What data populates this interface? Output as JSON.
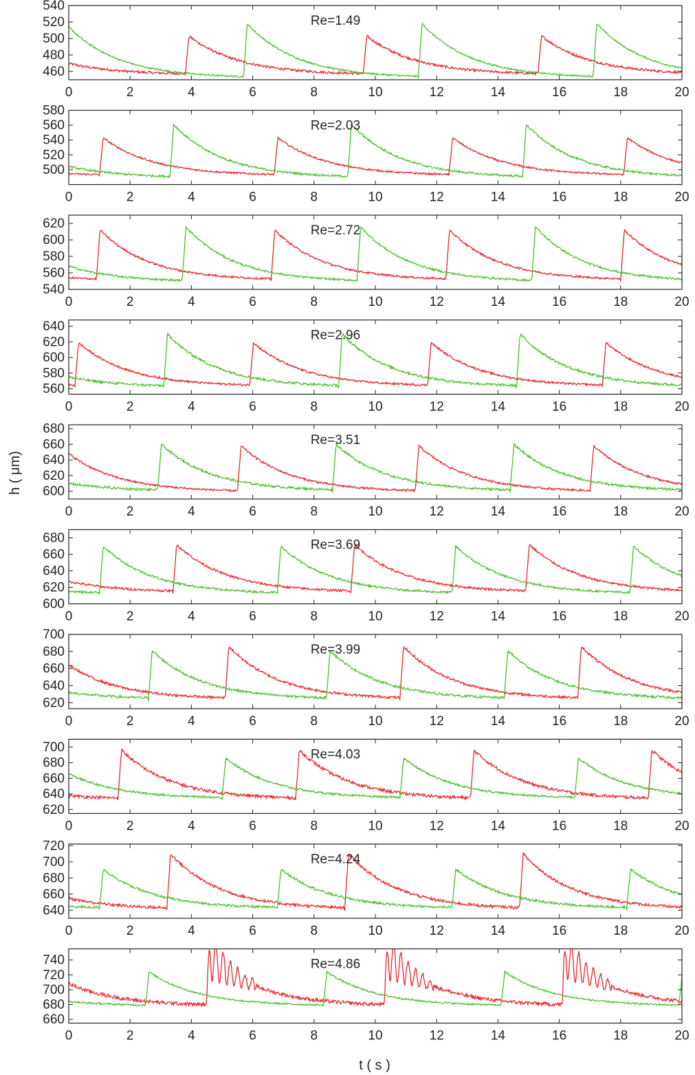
{
  "figure": {
    "xlabel": "t ( s )",
    "ylabel": "h ( μm)"
  },
  "colors": {
    "red": "#e8252a",
    "green": "#4cbf2c",
    "frame": "#222222"
  },
  "chart_data": [
    {
      "type": "line",
      "annotation": "Re=1.49",
      "xlim": [
        0,
        20
      ],
      "ylim": [
        450,
        540
      ],
      "xticks": [
        0,
        2,
        4,
        6,
        8,
        10,
        12,
        14,
        16,
        18,
        20
      ],
      "yticks": [
        460,
        480,
        500,
        520,
        540
      ],
      "period": 5.8,
      "series": [
        {
          "color": "red",
          "jump_times": [
            3.8,
            9.6,
            15.3
          ],
          "base": 456,
          "peak": 503,
          "noise": 1.5
        },
        {
          "color": "green",
          "jump_times": [
            5.7,
            11.4,
            17.1
          ],
          "base": 452,
          "peak": 518,
          "noise": 1.0
        }
      ]
    },
    {
      "type": "line",
      "annotation": "Re=2.03",
      "xlim": [
        0,
        20
      ],
      "ylim": [
        480,
        580
      ],
      "xticks": [
        0,
        2,
        4,
        6,
        8,
        10,
        12,
        14,
        16,
        18,
        20
      ],
      "yticks": [
        500,
        520,
        540,
        560,
        580
      ],
      "period": 5.8,
      "series": [
        {
          "color": "red",
          "jump_times": [
            1.0,
            6.7,
            12.4,
            18.1
          ],
          "base": 492,
          "peak": 543,
          "noise": 1.2
        },
        {
          "color": "green",
          "jump_times": [
            3.3,
            9.1,
            14.8
          ],
          "base": 489,
          "peak": 561,
          "noise": 1.4
        }
      ]
    },
    {
      "type": "line",
      "annotation": "Re=2.72",
      "xlim": [
        0,
        20
      ],
      "ylim": [
        540,
        630
      ],
      "xticks": [
        0,
        2,
        4,
        6,
        8,
        10,
        12,
        14,
        16,
        18,
        20
      ],
      "yticks": [
        540,
        560,
        580,
        600,
        620
      ],
      "period": 5.7,
      "series": [
        {
          "color": "red",
          "jump_times": [
            0.9,
            6.6,
            12.3,
            18.0
          ],
          "base": 551,
          "peak": 612,
          "noise": 1.2
        },
        {
          "color": "green",
          "jump_times": [
            3.7,
            9.4,
            15.1
          ],
          "base": 549,
          "peak": 616,
          "noise": 1.2
        }
      ]
    },
    {
      "type": "line",
      "annotation": "Re=2.96",
      "xlim": [
        0,
        20
      ],
      "ylim": [
        553,
        648
      ],
      "xticks": [
        0,
        2,
        4,
        6,
        8,
        10,
        12,
        14,
        16,
        18,
        20
      ],
      "yticks": [
        560,
        580,
        600,
        620,
        640
      ],
      "period": 5.8,
      "series": [
        {
          "color": "red",
          "jump_times": [
            0.2,
            5.9,
            11.7,
            17.4
          ],
          "base": 563,
          "peak": 619,
          "noise": 1.3
        },
        {
          "color": "green",
          "jump_times": [
            3.1,
            8.8,
            14.6
          ],
          "base": 562,
          "peak": 630,
          "noise": 1.6
        }
      ]
    },
    {
      "type": "line",
      "annotation": "Re=3.51",
      "xlim": [
        0,
        20
      ],
      "ylim": [
        590,
        685
      ],
      "xticks": [
        0,
        2,
        4,
        6,
        8,
        10,
        12,
        14,
        16,
        18,
        20
      ],
      "yticks": [
        600,
        620,
        640,
        660,
        680
      ],
      "period": 5.8,
      "series": [
        {
          "color": "red",
          "jump_times": [
            5.5,
            11.3,
            17.0
          ],
          "base": 599,
          "peak": 658,
          "noise": 1.3
        },
        {
          "color": "green",
          "jump_times": [
            2.9,
            8.6,
            14.4
          ],
          "base": 600,
          "peak": 660,
          "noise": 1.5
        }
      ]
    },
    {
      "type": "line",
      "annotation": "Re=3.69",
      "xlim": [
        0,
        20
      ],
      "ylim": [
        600,
        690
      ],
      "xticks": [
        0,
        2,
        4,
        6,
        8,
        10,
        12,
        14,
        16,
        18,
        20
      ],
      "yticks": [
        600,
        620,
        640,
        660,
        680
      ],
      "period": 5.8,
      "series": [
        {
          "color": "red",
          "jump_times": [
            3.4,
            9.2,
            14.9
          ],
          "base": 614,
          "peak": 672,
          "noise": 1.4
        },
        {
          "color": "green",
          "jump_times": [
            1.0,
            6.8,
            12.5,
            18.3
          ],
          "base": 612,
          "peak": 670,
          "noise": 1.3
        }
      ]
    },
    {
      "type": "line",
      "annotation": "Re=3.99",
      "xlim": [
        0,
        20
      ],
      "ylim": [
        613,
        700
      ],
      "xticks": [
        0,
        2,
        4,
        6,
        8,
        10,
        12,
        14,
        16,
        18,
        20
      ],
      "yticks": [
        620,
        640,
        660,
        680,
        700
      ],
      "period": 5.8,
      "series": [
        {
          "color": "red",
          "jump_times": [
            5.1,
            10.8,
            16.6
          ],
          "base": 624,
          "peak": 686,
          "noise": 1.5
        },
        {
          "color": "green",
          "jump_times": [
            2.6,
            8.4,
            14.2
          ],
          "base": 624,
          "peak": 681,
          "noise": 1.4
        }
      ]
    },
    {
      "type": "line",
      "annotation": "Re=4.03",
      "xlim": [
        0,
        20
      ],
      "ylim": [
        615,
        710
      ],
      "xticks": [
        0,
        2,
        4,
        6,
        8,
        10,
        12,
        14,
        16,
        18,
        20
      ],
      "yticks": [
        620,
        640,
        660,
        680,
        700
      ],
      "period": 5.8,
      "series": [
        {
          "color": "red",
          "jump_times": [
            1.6,
            7.4,
            13.1,
            18.9
          ],
          "base": 633,
          "peak": 696,
          "noise": 2.0
        },
        {
          "color": "green",
          "jump_times": [
            5.0,
            10.8,
            16.5
          ],
          "base": 634,
          "peak": 686,
          "noise": 1.3
        }
      ]
    },
    {
      "type": "line",
      "annotation": "Re=4.24",
      "xlim": [
        0,
        20
      ],
      "ylim": [
        630,
        722
      ],
      "xticks": [
        0,
        2,
        4,
        6,
        8,
        10,
        12,
        14,
        16,
        18,
        20
      ],
      "yticks": [
        640,
        660,
        680,
        700,
        720
      ],
      "period": 5.8,
      "series": [
        {
          "color": "red",
          "jump_times": [
            3.2,
            9.0,
            14.7
          ],
          "base": 641,
          "peak": 710,
          "noise": 1.8
        },
        {
          "color": "green",
          "jump_times": [
            1.0,
            6.8,
            12.5,
            18.2
          ],
          "base": 642,
          "peak": 691,
          "noise": 1.5
        }
      ]
    },
    {
      "type": "line",
      "annotation": "Re=4.86",
      "xlim": [
        0,
        20
      ],
      "ylim": [
        655,
        755
      ],
      "xticks": [
        0,
        2,
        4,
        6,
        8,
        10,
        12,
        14,
        16,
        18,
        20
      ],
      "yticks": [
        660,
        680,
        700,
        720,
        740
      ],
      "period": 5.8,
      "series": [
        {
          "color": "red",
          "jump_times": [
            4.5,
            10.3,
            16.1
          ],
          "base": 678,
          "peak": 745,
          "noise": 2.5,
          "oscillating": true
        },
        {
          "color": "green",
          "jump_times": [
            2.5,
            8.3,
            14.1,
            19.9
          ],
          "base": 678,
          "peak": 724,
          "noise": 1.2
        }
      ]
    }
  ]
}
